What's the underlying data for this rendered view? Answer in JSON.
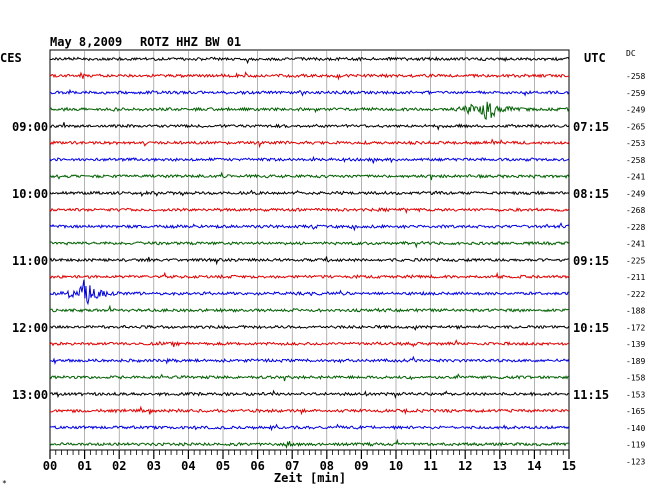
{
  "header": {
    "date": "May 8,2009",
    "station": "ROTZ HHZ BW 01",
    "left_tz": "CES",
    "right_tz": "UTC",
    "dc_label": "DC"
  },
  "corner_mark": "*",
  "colors": {
    "trace_cycle": [
      "#000000",
      "#e00000",
      "#0000e0",
      "#006000"
    ],
    "grid": "#808080"
  },
  "chart_data": {
    "type": "line",
    "title": "May 8,2009   ROTZ HHZ BW 01",
    "xlabel": "Zeit [min]",
    "x_ticks": [
      "00",
      "01",
      "02",
      "03",
      "04",
      "05",
      "06",
      "07",
      "08",
      "09",
      "10",
      "11",
      "12",
      "13",
      "14",
      "15"
    ],
    "xlim": [
      0,
      15
    ],
    "left_hour_labels": [
      {
        "row": 4,
        "text": "09:00"
      },
      {
        "row": 8,
        "text": "10:00"
      },
      {
        "row": 12,
        "text": "11:00"
      },
      {
        "row": 16,
        "text": "12:00"
      },
      {
        "row": 20,
        "text": "13:00"
      }
    ],
    "right_time_labels": [
      {
        "row": 4,
        "text": "07:15"
      },
      {
        "row": 8,
        "text": "08:15"
      },
      {
        "row": 12,
        "text": "09:15"
      },
      {
        "row": 16,
        "text": "10:15"
      },
      {
        "row": 20,
        "text": "11:15"
      }
    ],
    "dc_offsets": [
      -258,
      -259,
      -249,
      -265,
      -253,
      -258,
      -241,
      -249,
      -268,
      -228,
      -241,
      -225,
      -211,
      -222,
      -188,
      -172,
      -139,
      -189,
      -158,
      -153,
      -165,
      -140,
      -119,
      -123
    ],
    "events": [
      {
        "row": 3,
        "minute": 12.6,
        "amplitude": "large"
      },
      {
        "row": 14,
        "minute": 1.0,
        "amplitude": "large"
      },
      {
        "row": 23,
        "minute": 6.9,
        "amplitude": "small"
      }
    ]
  }
}
